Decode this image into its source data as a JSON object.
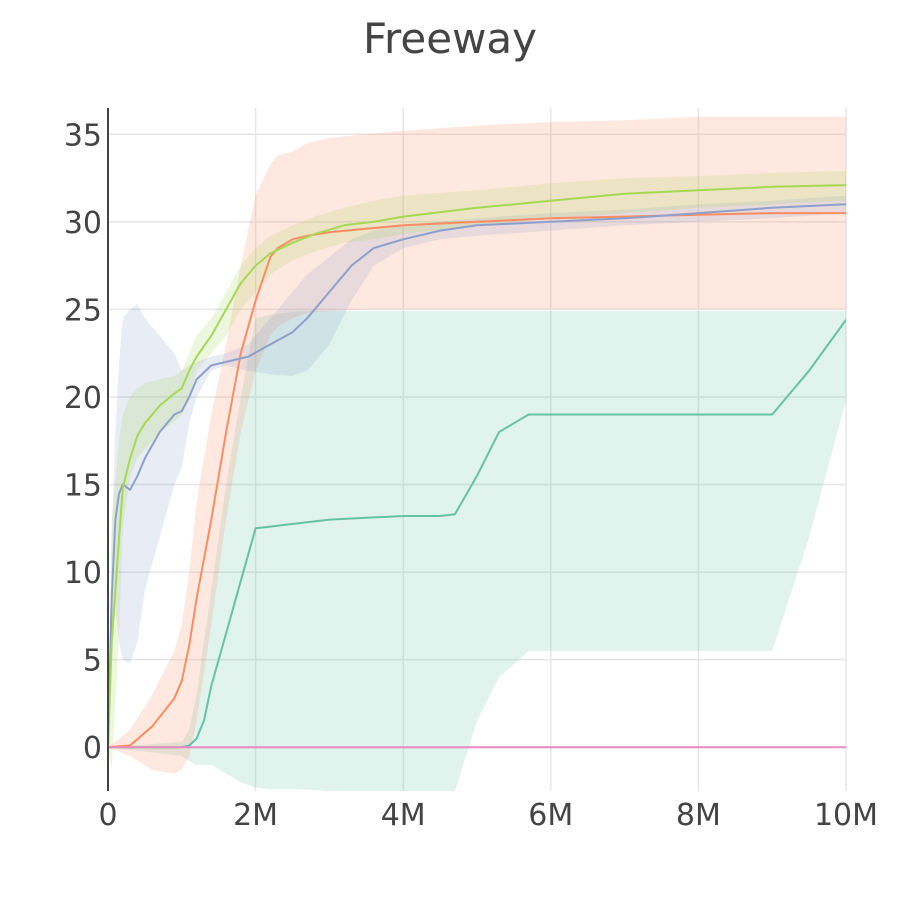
{
  "chart_data": {
    "type": "line",
    "title": "Freeway",
    "xlabel": "",
    "ylabel": "",
    "xlim": [
      0,
      10000000
    ],
    "ylim": [
      -2.5,
      36.5
    ],
    "grid": true,
    "x_ticks": [
      {
        "value": 0,
        "label": "0"
      },
      {
        "value": 2000000,
        "label": "2M"
      },
      {
        "value": 4000000,
        "label": "4M"
      },
      {
        "value": 6000000,
        "label": "6M"
      },
      {
        "value": 8000000,
        "label": "8M"
      },
      {
        "value": 10000000,
        "label": "10M"
      }
    ],
    "y_ticks": [
      {
        "value": 0,
        "label": "0"
      },
      {
        "value": 5,
        "label": "5"
      },
      {
        "value": 10,
        "label": "10"
      },
      {
        "value": 15,
        "label": "15"
      },
      {
        "value": 20,
        "label": "20"
      },
      {
        "value": 25,
        "label": "25"
      },
      {
        "value": 30,
        "label": "30"
      },
      {
        "value": 35,
        "label": "35"
      }
    ],
    "series": [
      {
        "color": "#66c2a5",
        "band_color": "#66c2a5",
        "x": [
          0,
          1000000,
          1100000,
          1200000,
          1300000,
          1400000,
          1600000,
          1800000,
          2000000,
          2200000,
          2400000,
          2600000,
          3000000,
          3500000,
          4000000,
          4500000,
          4700000,
          5000000,
          5300000,
          5700000,
          6000000,
          7000000,
          8000000,
          9000000,
          9500000,
          10000000
        ],
        "y": [
          0,
          0,
          0.1,
          0.5,
          1.5,
          3.5,
          6.5,
          9.5,
          12.5,
          12.6,
          12.7,
          12.8,
          13.0,
          13.1,
          13.2,
          13.2,
          13.3,
          15.5,
          18.0,
          19.0,
          19.0,
          19.0,
          19.0,
          19.0,
          21.5,
          24.4
        ],
        "lower": [
          0,
          -0.5,
          -0.8,
          -1.0,
          -1.0,
          -1.0,
          -1.5,
          -2.0,
          -2.3,
          -2.4,
          -2.4,
          -2.4,
          -2.5,
          -2.5,
          -2.5,
          -2.5,
          -2.5,
          1.5,
          4.0,
          5.5,
          5.5,
          5.5,
          5.5,
          5.5,
          12.0,
          19.8
        ],
        "upper": [
          0,
          0.3,
          1.0,
          3.0,
          6.0,
          9.0,
          15.0,
          20.0,
          24.5,
          24.7,
          24.8,
          24.9,
          24.9,
          24.9,
          24.9,
          24.9,
          24.9,
          24.9,
          24.9,
          24.9,
          24.9,
          24.9,
          24.9,
          24.9,
          24.9,
          24.9
        ]
      },
      {
        "color": "#fc8d62",
        "band_color": "#fc8d62",
        "x": [
          0,
          300000,
          600000,
          900000,
          1000000,
          1100000,
          1200000,
          1400000,
          1600000,
          1800000,
          2000000,
          2200000,
          2300000,
          2500000,
          2700000,
          3000000,
          3500000,
          4000000,
          5000000,
          6000000,
          7000000,
          8000000,
          9000000,
          10000000
        ],
        "y": [
          0,
          0.1,
          1.2,
          2.8,
          3.8,
          5.8,
          8.5,
          13.0,
          18.0,
          22.5,
          25.5,
          28.0,
          28.5,
          29.0,
          29.2,
          29.4,
          29.6,
          29.8,
          30.0,
          30.2,
          30.3,
          30.4,
          30.5,
          30.5
        ],
        "lower": [
          0,
          -0.5,
          -1.3,
          -1.5,
          -1.3,
          -0.5,
          1.5,
          7.0,
          13.0,
          18.0,
          21.5,
          23.5,
          24.0,
          24.5,
          24.8,
          24.9,
          25.0,
          25.0,
          25.0,
          25.0,
          25.0,
          25.0,
          25.0,
          25.0
        ],
        "upper": [
          0,
          1.0,
          3.0,
          5.5,
          7.0,
          10.0,
          14.0,
          19.0,
          23.0,
          27.5,
          31.5,
          33.3,
          33.8,
          34.0,
          34.5,
          34.8,
          35.0,
          35.2,
          35.5,
          35.7,
          35.8,
          36.0,
          36.0,
          36.0
        ]
      },
      {
        "color": "#8da0cb",
        "band_color": "#8da0cb",
        "x": [
          0,
          50000,
          100000,
          150000,
          200000,
          300000,
          400000,
          500000,
          700000,
          900000,
          1000000,
          1100000,
          1200000,
          1400000,
          1600000,
          1900000,
          2200000,
          2500000,
          2700000,
          3000000,
          3300000,
          3600000,
          4000000,
          4500000,
          5000000,
          6000000,
          7000000,
          8000000,
          9000000,
          10000000
        ],
        "y": [
          0,
          8.5,
          13.0,
          14.5,
          15.0,
          14.7,
          15.5,
          16.5,
          18.0,
          19.0,
          19.2,
          20.0,
          21.0,
          21.8,
          22.0,
          22.3,
          23.0,
          23.7,
          24.5,
          26.0,
          27.5,
          28.5,
          29.0,
          29.5,
          29.8,
          30.0,
          30.2,
          30.5,
          30.8,
          31.0
        ],
        "lower": [
          0,
          5.0,
          8.0,
          6.0,
          5.0,
          4.8,
          6.0,
          9.0,
          12.0,
          15.0,
          16.0,
          18.5,
          20.0,
          21.5,
          21.8,
          21.5,
          21.3,
          21.2,
          21.5,
          23.0,
          25.5,
          27.5,
          28.5,
          29.0,
          29.2,
          29.5,
          29.8,
          30.0,
          30.2,
          30.5
        ],
        "upper": [
          0,
          12.0,
          18.0,
          22.0,
          24.5,
          25.0,
          25.3,
          24.5,
          23.5,
          22.5,
          21.5,
          21.8,
          22.0,
          22.3,
          22.5,
          23.0,
          24.5,
          26.0,
          27.0,
          28.0,
          29.0,
          29.5,
          29.8,
          30.0,
          30.2,
          30.5,
          30.7,
          31.0,
          31.2,
          31.5
        ]
      },
      {
        "color": "#a6d854",
        "band_color": "#a6d854",
        "x": [
          0,
          50000,
          150000,
          200000,
          300000,
          400000,
          500000,
          700000,
          900000,
          1000000,
          1100000,
          1200000,
          1400000,
          1600000,
          1800000,
          2000000,
          2200000,
          2500000,
          2800000,
          3200000,
          3600000,
          4000000,
          5000000,
          6000000,
          7000000,
          8000000,
          9000000,
          10000000
        ],
        "y": [
          0,
          6.0,
          12.0,
          14.8,
          16.5,
          17.8,
          18.5,
          19.5,
          20.2,
          20.5,
          21.5,
          22.3,
          23.5,
          25.0,
          26.5,
          27.5,
          28.2,
          28.8,
          29.3,
          29.8,
          30.0,
          30.3,
          30.8,
          31.2,
          31.6,
          31.8,
          32.0,
          32.1
        ],
        "lower": [
          0,
          -1.3,
          6.5,
          12.5,
          15.5,
          16.5,
          17.0,
          18.0,
          18.6,
          19.0,
          20.0,
          21.5,
          22.5,
          23.5,
          25.0,
          26.0,
          27.0,
          27.8,
          28.3,
          28.8,
          29.0,
          29.3,
          29.8,
          30.2,
          30.5,
          30.8,
          31.0,
          31.2
        ],
        "upper": [
          0,
          13.0,
          17.5,
          19.0,
          20.0,
          20.5,
          20.8,
          21.0,
          21.2,
          21.5,
          22.5,
          23.5,
          24.5,
          26.0,
          27.5,
          28.5,
          29.2,
          29.8,
          30.3,
          30.8,
          31.2,
          31.5,
          31.8,
          32.2,
          32.5,
          32.6,
          32.8,
          32.9
        ]
      },
      {
        "color": "#e78ac3",
        "band_color": "#e78ac3",
        "x": [
          0,
          10000000
        ],
        "y": [
          0,
          0
        ],
        "lower": [
          0,
          0
        ],
        "upper": [
          0,
          0
        ]
      }
    ]
  }
}
